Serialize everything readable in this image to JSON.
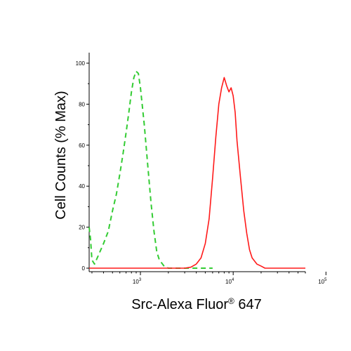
{
  "chart_data": {
    "type": "line",
    "xlabel_main": "Src-Alexa Fluor",
    "xlabel_reg": "®",
    "xlabel_tail": " 647",
    "ylabel": "Cell Counts (% Max)",
    "x_scale": "log",
    "xlim": [
      280,
      60000
    ],
    "ylim": [
      0,
      100
    ],
    "x_ticks": [
      {
        "base": "10",
        "exp": "3",
        "value": 1000
      },
      {
        "base": "10",
        "exp": "4",
        "value": 10000
      },
      {
        "base": "10",
        "exp": "5",
        "value": 100000
      }
    ],
    "y_ticks": [
      {
        "label": "0",
        "value": 0
      },
      {
        "label": "20",
        "value": 20
      },
      {
        "label": "40",
        "value": 40
      },
      {
        "label": "60",
        "value": 60
      },
      {
        "label": "80",
        "value": 80
      },
      {
        "label": "100",
        "value": 100
      }
    ],
    "grid": false,
    "series": [
      {
        "color": "#33cc33",
        "style": "dashed",
        "points": [
          [
            280,
            20
          ],
          [
            290,
            14
          ],
          [
            300,
            4
          ],
          [
            320,
            2
          ],
          [
            350,
            6
          ],
          [
            400,
            12
          ],
          [
            450,
            18
          ],
          [
            500,
            28
          ],
          [
            550,
            36
          ],
          [
            600,
            46
          ],
          [
            650,
            56
          ],
          [
            700,
            66
          ],
          [
            750,
            76
          ],
          [
            800,
            86
          ],
          [
            850,
            93
          ],
          [
            900,
            96
          ],
          [
            950,
            95
          ],
          [
            1000,
            88
          ],
          [
            1100,
            70
          ],
          [
            1200,
            50
          ],
          [
            1300,
            32
          ],
          [
            1400,
            18
          ],
          [
            1500,
            8
          ],
          [
            1600,
            4
          ],
          [
            1800,
            1
          ],
          [
            2000,
            0
          ],
          [
            2500,
            0
          ],
          [
            3000,
            0
          ],
          [
            4000,
            0
          ],
          [
            5000,
            0
          ],
          [
            6000,
            0
          ]
        ]
      },
      {
        "color": "#ff1a1a",
        "style": "solid",
        "points": [
          [
            280,
            0
          ],
          [
            1000,
            0
          ],
          [
            2000,
            0
          ],
          [
            3000,
            0
          ],
          [
            3500,
            0.5
          ],
          [
            4000,
            2
          ],
          [
            4500,
            5
          ],
          [
            5000,
            12
          ],
          [
            5500,
            24
          ],
          [
            6000,
            44
          ],
          [
            6500,
            64
          ],
          [
            7000,
            80
          ],
          [
            7500,
            88
          ],
          [
            8000,
            93
          ],
          [
            8500,
            89
          ],
          [
            9000,
            86
          ],
          [
            9500,
            88
          ],
          [
            10000,
            84
          ],
          [
            10500,
            76
          ],
          [
            11000,
            62
          ],
          [
            12000,
            44
          ],
          [
            13000,
            28
          ],
          [
            14000,
            17
          ],
          [
            15000,
            9
          ],
          [
            16000,
            5
          ],
          [
            18000,
            2
          ],
          [
            20000,
            1
          ],
          [
            22000,
            0
          ],
          [
            30000,
            0
          ],
          [
            50000,
            0
          ],
          [
            60000,
            0
          ]
        ]
      }
    ]
  }
}
